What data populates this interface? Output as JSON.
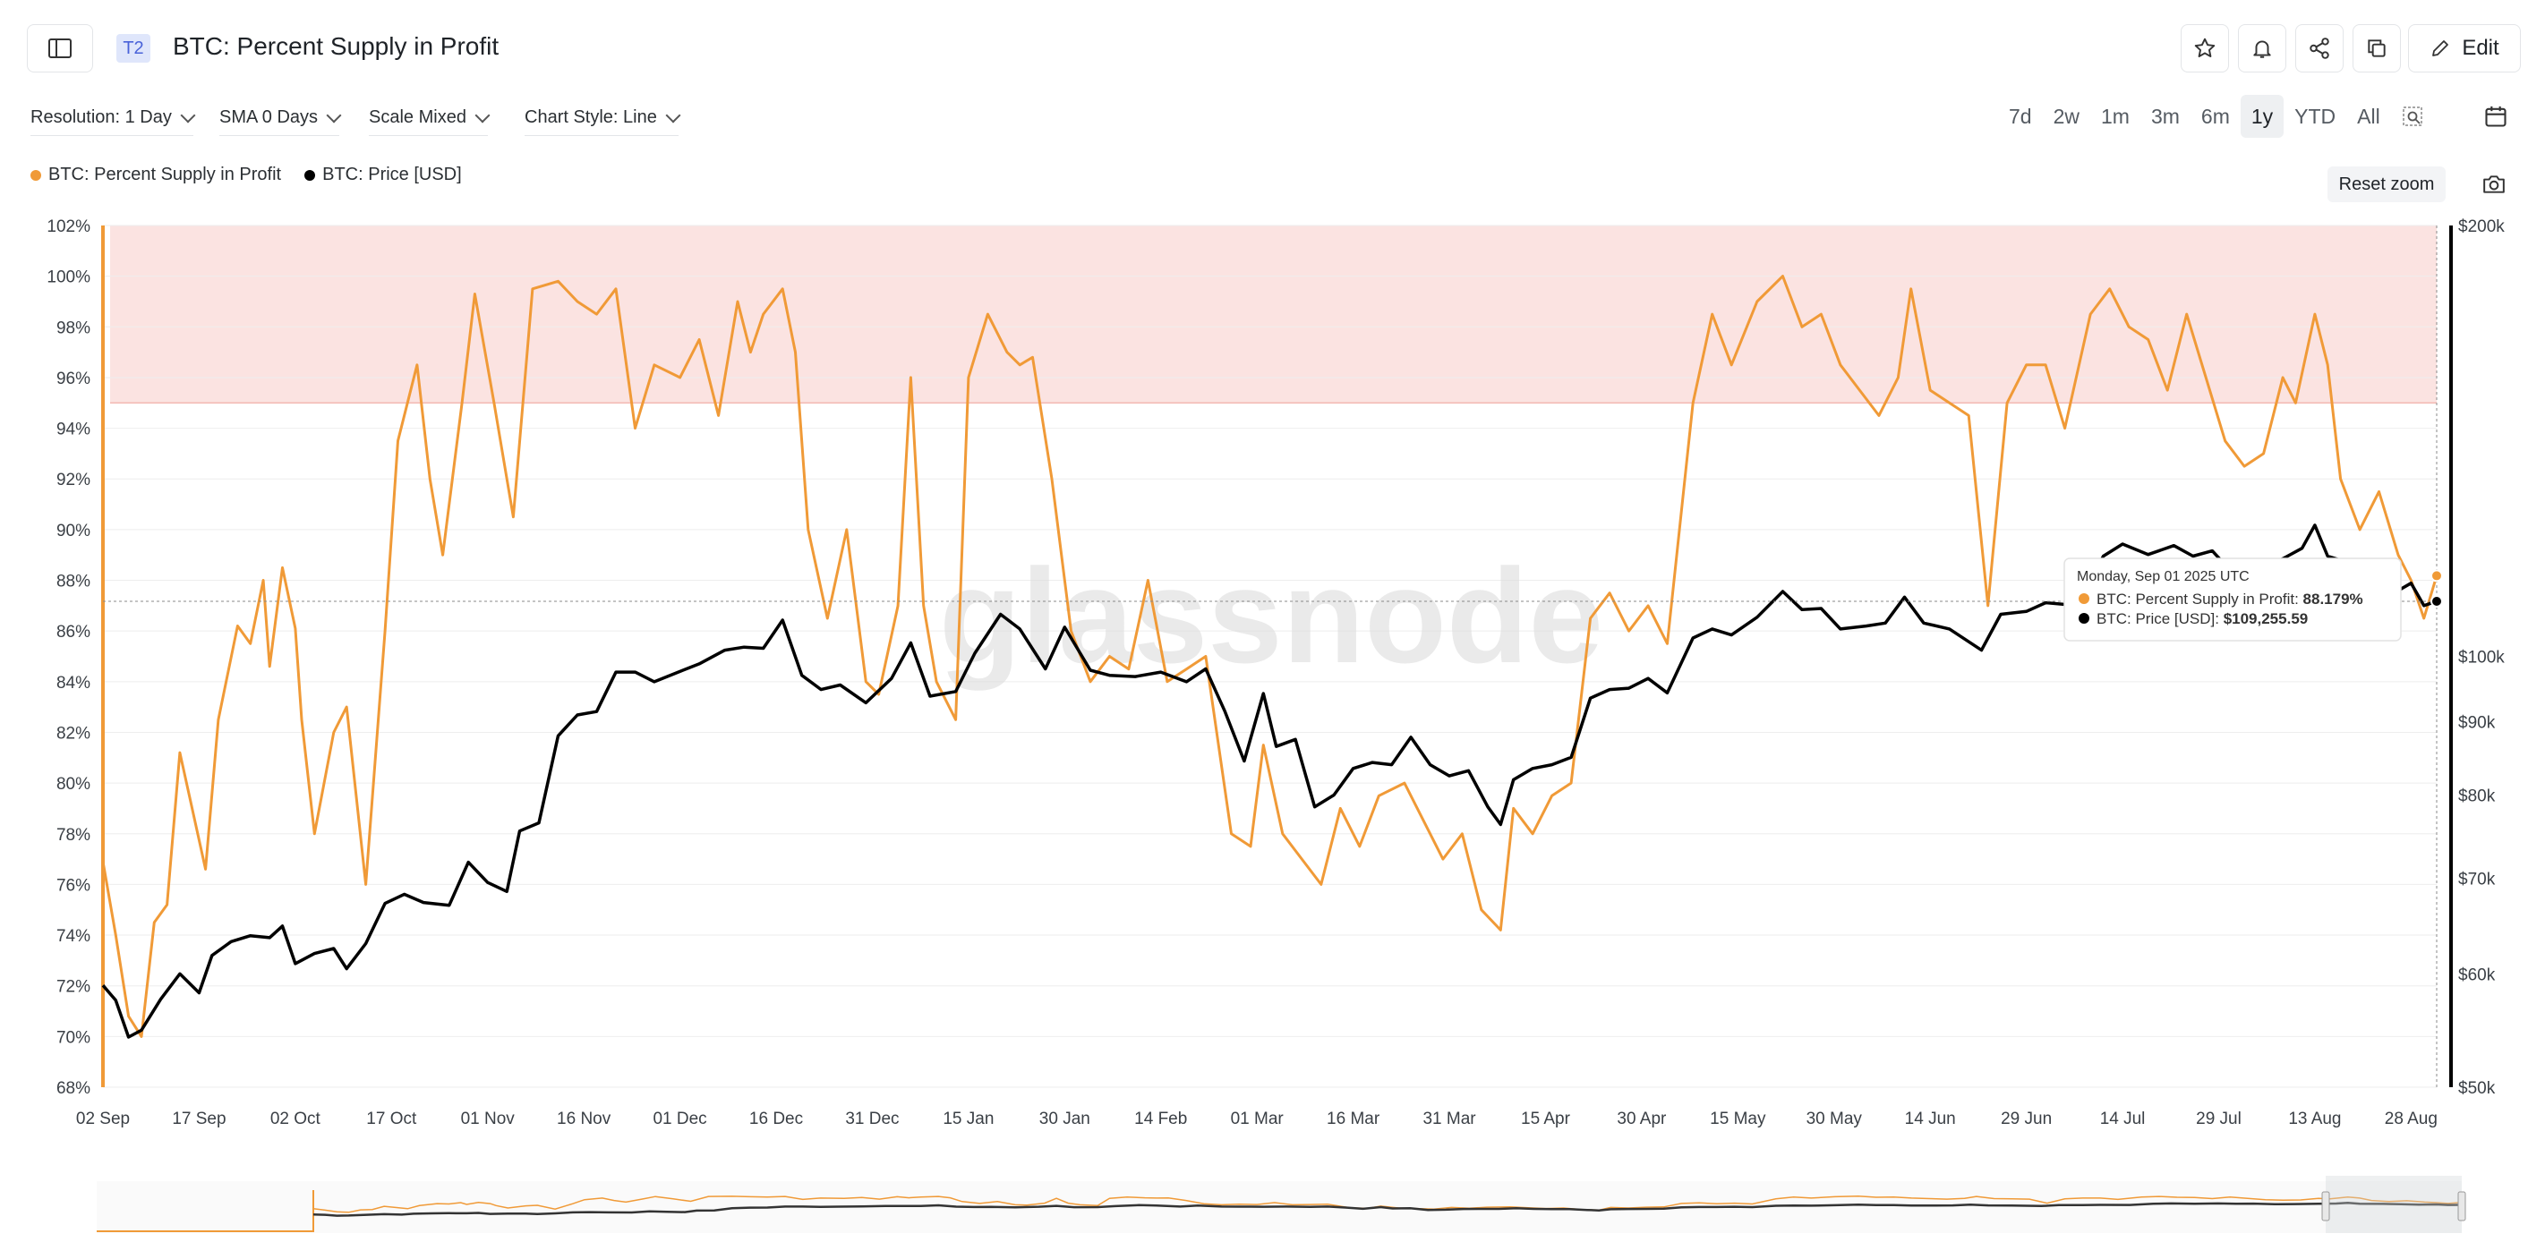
{
  "header": {
    "badge": "T2",
    "title": "BTC: Percent Supply in Profit",
    "edit_label": "Edit"
  },
  "controls": {
    "resolution": "Resolution: 1 Day",
    "sma": "SMA 0 Days",
    "scale": "Scale Mixed",
    "chart_style": "Chart Style: Line"
  },
  "ranges": [
    "7d",
    "2w",
    "1m",
    "3m",
    "6m",
    "1y",
    "YTD",
    "All"
  ],
  "active_range": "1y",
  "reset_zoom": "Reset zoom",
  "watermark": "glassnode",
  "tooltip": {
    "date": "Monday, Sep 01 2025 UTC",
    "s1_label": "BTC: Percent Supply in Profit: ",
    "s1_value": "88.179%",
    "s2_label": "BTC: Price [USD]: ",
    "s2_value": "$109,255.59"
  },
  "colors": {
    "supply": "#f09a37",
    "price": "#000000",
    "band": "#fbe3e1",
    "grid": "#eeeeee"
  },
  "chart_data": {
    "type": "line",
    "title": "BTC: Percent Supply in Profit",
    "x_ticks": [
      "02 Sep",
      "17 Sep",
      "02 Oct",
      "17 Oct",
      "01 Nov",
      "16 Nov",
      "01 Dec",
      "16 Dec",
      "31 Dec",
      "15 Jan",
      "30 Jan",
      "14 Feb",
      "01 Mar",
      "16 Mar",
      "31 Mar",
      "15 Apr",
      "30 Apr",
      "15 May",
      "30 May",
      "14 Jun",
      "29 Jun",
      "14 Jul",
      "29 Jul",
      "13 Aug",
      "28 Aug"
    ],
    "x_range": [
      "2024-09-02",
      "2025-09-01"
    ],
    "y_left": {
      "ticks": [
        "68%",
        "70%",
        "72%",
        "74%",
        "76%",
        "78%",
        "80%",
        "82%",
        "84%",
        "86%",
        "88%",
        "90%",
        "92%",
        "94%",
        "96%",
        "98%",
        "100%",
        "102%"
      ],
      "range": [
        68,
        102
      ],
      "scale": "linear"
    },
    "y_right": {
      "ticks": [
        "$50k",
        "$60k",
        "$70k",
        "$80k",
        "$90k",
        "$100k",
        "$200k"
      ],
      "tick_values": [
        50000,
        60000,
        70000,
        80000,
        90000,
        100000,
        200000
      ],
      "range": [
        50000,
        200000
      ],
      "scale": "log"
    },
    "highlight_band": {
      "from": 95,
      "to": 102
    },
    "grid": true,
    "legend_position": "top-left",
    "series": [
      {
        "name": "BTC: Percent Supply in Profit",
        "axis": "left",
        "points": [
          [
            "2024-09-02",
            76.9
          ],
          [
            "2024-09-04",
            74.0
          ],
          [
            "2024-09-06",
            70.8
          ],
          [
            "2024-09-08",
            70.0
          ],
          [
            "2024-09-10",
            74.5
          ],
          [
            "2024-09-12",
            75.2
          ],
          [
            "2024-09-14",
            81.2
          ],
          [
            "2024-09-18",
            76.6
          ],
          [
            "2024-09-20",
            82.5
          ],
          [
            "2024-09-23",
            86.2
          ],
          [
            "2024-09-25",
            85.5
          ],
          [
            "2024-09-27",
            88.0
          ],
          [
            "2024-09-28",
            84.6
          ],
          [
            "2024-09-30",
            88.5
          ],
          [
            "2024-10-02",
            86.1
          ],
          [
            "2024-10-03",
            82.5
          ],
          [
            "2024-10-05",
            78.0
          ],
          [
            "2024-10-08",
            82.0
          ],
          [
            "2024-10-10",
            83.0
          ],
          [
            "2024-10-13",
            76.0
          ],
          [
            "2024-10-16",
            86.0
          ],
          [
            "2024-10-18",
            93.5
          ],
          [
            "2024-10-21",
            96.5
          ],
          [
            "2024-10-23",
            92.0
          ],
          [
            "2024-10-25",
            89.0
          ],
          [
            "2024-10-28",
            95.0
          ],
          [
            "2024-10-30",
            99.3
          ],
          [
            "2024-11-02",
            95.0
          ],
          [
            "2024-11-05",
            90.5
          ],
          [
            "2024-11-08",
            99.5
          ],
          [
            "2024-11-12",
            99.8
          ],
          [
            "2024-11-15",
            99.0
          ],
          [
            "2024-11-18",
            98.5
          ],
          [
            "2024-11-21",
            99.5
          ],
          [
            "2024-11-24",
            94.0
          ],
          [
            "2024-11-27",
            96.5
          ],
          [
            "2024-12-01",
            96.0
          ],
          [
            "2024-12-04",
            97.5
          ],
          [
            "2024-12-07",
            94.5
          ],
          [
            "2024-12-10",
            99.0
          ],
          [
            "2024-12-12",
            97.0
          ],
          [
            "2024-12-14",
            98.5
          ],
          [
            "2024-12-17",
            99.5
          ],
          [
            "2024-12-19",
            97.0
          ],
          [
            "2024-12-21",
            90.0
          ],
          [
            "2024-12-24",
            86.5
          ],
          [
            "2024-12-27",
            90.0
          ],
          [
            "2024-12-30",
            84.0
          ],
          [
            "2025-01-01",
            83.5
          ],
          [
            "2025-01-04",
            87.0
          ],
          [
            "2025-01-06",
            96.0
          ],
          [
            "2025-01-08",
            87.0
          ],
          [
            "2025-01-10",
            84.0
          ],
          [
            "2025-01-13",
            82.5
          ],
          [
            "2025-01-15",
            96.0
          ],
          [
            "2025-01-18",
            98.5
          ],
          [
            "2025-01-21",
            97.0
          ],
          [
            "2025-01-23",
            96.5
          ],
          [
            "2025-01-25",
            96.8
          ],
          [
            "2025-01-28",
            92.0
          ],
          [
            "2025-01-31",
            86.0
          ],
          [
            "2025-02-03",
            84.0
          ],
          [
            "2025-02-06",
            85.0
          ],
          [
            "2025-02-09",
            84.5
          ],
          [
            "2025-02-12",
            88.0
          ],
          [
            "2025-02-15",
            84.0
          ],
          [
            "2025-02-18",
            84.5
          ],
          [
            "2025-02-21",
            85.0
          ],
          [
            "2025-02-25",
            78.0
          ],
          [
            "2025-02-28",
            77.5
          ],
          [
            "2025-03-02",
            81.5
          ],
          [
            "2025-03-05",
            78.0
          ],
          [
            "2025-03-08",
            77.0
          ],
          [
            "2025-03-11",
            76.0
          ],
          [
            "2025-03-14",
            79.0
          ],
          [
            "2025-03-17",
            77.5
          ],
          [
            "2025-03-20",
            79.5
          ],
          [
            "2025-03-24",
            80.0
          ],
          [
            "2025-03-27",
            78.5
          ],
          [
            "2025-03-30",
            77.0
          ],
          [
            "2025-04-02",
            78.0
          ],
          [
            "2025-04-05",
            75.0
          ],
          [
            "2025-04-08",
            74.2
          ],
          [
            "2025-04-10",
            79.0
          ],
          [
            "2025-04-13",
            78.0
          ],
          [
            "2025-04-16",
            79.5
          ],
          [
            "2025-04-19",
            80.0
          ],
          [
            "2025-04-22",
            86.5
          ],
          [
            "2025-04-25",
            87.5
          ],
          [
            "2025-04-28",
            86.0
          ],
          [
            "2025-05-01",
            87.0
          ],
          [
            "2025-05-04",
            85.5
          ],
          [
            "2025-05-08",
            95.0
          ],
          [
            "2025-05-11",
            98.5
          ],
          [
            "2025-05-14",
            96.5
          ],
          [
            "2025-05-18",
            99.0
          ],
          [
            "2025-05-22",
            100.0
          ],
          [
            "2025-05-25",
            98.0
          ],
          [
            "2025-05-28",
            98.5
          ],
          [
            "2025-05-31",
            96.5
          ],
          [
            "2025-06-03",
            95.5
          ],
          [
            "2025-06-06",
            94.5
          ],
          [
            "2025-06-09",
            96.0
          ],
          [
            "2025-06-11",
            99.5
          ],
          [
            "2025-06-14",
            95.5
          ],
          [
            "2025-06-17",
            95.0
          ],
          [
            "2025-06-20",
            94.5
          ],
          [
            "2025-06-23",
            87.0
          ],
          [
            "2025-06-26",
            95.0
          ],
          [
            "2025-06-29",
            96.5
          ],
          [
            "2025-07-02",
            96.5
          ],
          [
            "2025-07-05",
            94.0
          ],
          [
            "2025-07-09",
            98.5
          ],
          [
            "2025-07-12",
            99.5
          ],
          [
            "2025-07-15",
            98.0
          ],
          [
            "2025-07-18",
            97.5
          ],
          [
            "2025-07-21",
            95.5
          ],
          [
            "2025-07-24",
            98.5
          ],
          [
            "2025-07-27",
            96.0
          ],
          [
            "2025-07-30",
            93.5
          ],
          [
            "2025-08-02",
            92.5
          ],
          [
            "2025-08-05",
            93.0
          ],
          [
            "2025-08-08",
            96.0
          ],
          [
            "2025-08-10",
            95.0
          ],
          [
            "2025-08-13",
            98.5
          ],
          [
            "2025-08-15",
            96.5
          ],
          [
            "2025-08-17",
            92.0
          ],
          [
            "2025-08-20",
            90.0
          ],
          [
            "2025-08-23",
            91.5
          ],
          [
            "2025-08-26",
            89.0
          ],
          [
            "2025-08-28",
            88.0
          ],
          [
            "2025-08-30",
            86.5
          ],
          [
            "2025-09-01",
            88.18
          ]
        ]
      },
      {
        "name": "BTC: Price [USD]",
        "axis": "right",
        "points": [
          [
            "2024-09-02",
            58900
          ],
          [
            "2024-09-04",
            57500
          ],
          [
            "2024-09-06",
            54200
          ],
          [
            "2024-09-08",
            54800
          ],
          [
            "2024-09-11",
            57600
          ],
          [
            "2024-09-14",
            60000
          ],
          [
            "2024-09-17",
            58200
          ],
          [
            "2024-09-19",
            61800
          ],
          [
            "2024-09-22",
            63200
          ],
          [
            "2024-09-25",
            63800
          ],
          [
            "2024-09-28",
            63600
          ],
          [
            "2024-09-30",
            64800
          ],
          [
            "2024-10-02",
            61000
          ],
          [
            "2024-10-05",
            62000
          ],
          [
            "2024-10-08",
            62500
          ],
          [
            "2024-10-10",
            60500
          ],
          [
            "2024-10-13",
            63000
          ],
          [
            "2024-10-16",
            67200
          ],
          [
            "2024-10-19",
            68200
          ],
          [
            "2024-10-22",
            67300
          ],
          [
            "2024-10-26",
            67000
          ],
          [
            "2024-10-29",
            71800
          ],
          [
            "2024-11-01",
            69500
          ],
          [
            "2024-11-04",
            68500
          ],
          [
            "2024-11-06",
            75500
          ],
          [
            "2024-11-09",
            76500
          ],
          [
            "2024-11-12",
            88000
          ],
          [
            "2024-11-15",
            91000
          ],
          [
            "2024-11-18",
            91500
          ],
          [
            "2024-11-21",
            97500
          ],
          [
            "2024-11-24",
            97500
          ],
          [
            "2024-11-27",
            96000
          ],
          [
            "2024-11-30",
            97200
          ],
          [
            "2024-12-04",
            98800
          ],
          [
            "2024-12-08",
            101000
          ],
          [
            "2024-12-11",
            101500
          ],
          [
            "2024-12-14",
            101300
          ],
          [
            "2024-12-17",
            106000
          ],
          [
            "2024-12-20",
            97000
          ],
          [
            "2024-12-23",
            94800
          ],
          [
            "2024-12-26",
            95500
          ],
          [
            "2024-12-30",
            92800
          ],
          [
            "2025-01-03",
            96500
          ],
          [
            "2025-01-06",
            102200
          ],
          [
            "2025-01-09",
            93800
          ],
          [
            "2025-01-13",
            94500
          ],
          [
            "2025-01-16",
            100500
          ],
          [
            "2025-01-20",
            107000
          ],
          [
            "2025-01-23",
            104500
          ],
          [
            "2025-01-27",
            98000
          ],
          [
            "2025-01-30",
            104800
          ],
          [
            "2025-02-03",
            97800
          ],
          [
            "2025-02-06",
            97000
          ],
          [
            "2025-02-10",
            96800
          ],
          [
            "2025-02-14",
            97500
          ],
          [
            "2025-02-18",
            96000
          ],
          [
            "2025-02-21",
            98000
          ],
          [
            "2025-02-24",
            91500
          ],
          [
            "2025-02-27",
            84500
          ],
          [
            "2025-03-02",
            94200
          ],
          [
            "2025-03-04",
            86500
          ],
          [
            "2025-03-07",
            87500
          ],
          [
            "2025-03-10",
            78500
          ],
          [
            "2025-03-13",
            80000
          ],
          [
            "2025-03-16",
            83500
          ],
          [
            "2025-03-19",
            84300
          ],
          [
            "2025-03-22",
            84000
          ],
          [
            "2025-03-25",
            87800
          ],
          [
            "2025-03-28",
            84000
          ],
          [
            "2025-03-31",
            82500
          ],
          [
            "2025-04-03",
            83200
          ],
          [
            "2025-04-06",
            78500
          ],
          [
            "2025-04-08",
            76300
          ],
          [
            "2025-04-10",
            82000
          ],
          [
            "2025-04-13",
            83500
          ],
          [
            "2025-04-16",
            84000
          ],
          [
            "2025-04-19",
            85000
          ],
          [
            "2025-04-22",
            93500
          ],
          [
            "2025-04-25",
            94800
          ],
          [
            "2025-04-28",
            95000
          ],
          [
            "2025-05-01",
            96500
          ],
          [
            "2025-05-04",
            94300
          ],
          [
            "2025-05-08",
            103000
          ],
          [
            "2025-05-11",
            104500
          ],
          [
            "2025-05-14",
            103500
          ],
          [
            "2025-05-18",
            106500
          ],
          [
            "2025-05-22",
            111000
          ],
          [
            "2025-05-25",
            107800
          ],
          [
            "2025-05-28",
            108000
          ],
          [
            "2025-05-31",
            104500
          ],
          [
            "2025-06-04",
            105000
          ],
          [
            "2025-06-07",
            105500
          ],
          [
            "2025-06-10",
            110000
          ],
          [
            "2025-06-13",
            105500
          ],
          [
            "2025-06-17",
            104500
          ],
          [
            "2025-06-22",
            101000
          ],
          [
            "2025-06-25",
            107000
          ],
          [
            "2025-06-29",
            107500
          ],
          [
            "2025-07-02",
            109000
          ],
          [
            "2025-07-07",
            108500
          ],
          [
            "2025-07-11",
            117500
          ],
          [
            "2025-07-14",
            119800
          ],
          [
            "2025-07-18",
            117800
          ],
          [
            "2025-07-22",
            119500
          ],
          [
            "2025-07-25",
            117500
          ],
          [
            "2025-07-28",
            118500
          ],
          [
            "2025-08-01",
            113300
          ],
          [
            "2025-08-04",
            114800
          ],
          [
            "2025-08-08",
            117000
          ],
          [
            "2025-08-11",
            119000
          ],
          [
            "2025-08-13",
            123500
          ],
          [
            "2025-08-15",
            117500
          ],
          [
            "2025-08-19",
            116000
          ],
          [
            "2025-08-22",
            113500
          ],
          [
            "2025-08-25",
            110500
          ],
          [
            "2025-08-28",
            112500
          ],
          [
            "2025-08-30",
            108500
          ],
          [
            "2025-09-01",
            109255.59
          ]
        ]
      }
    ]
  }
}
